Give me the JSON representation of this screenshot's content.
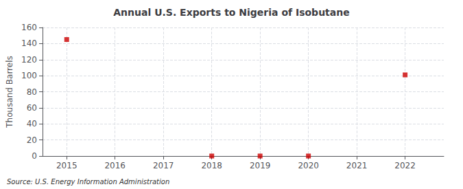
{
  "chart_data": {
    "type": "scatter",
    "title": "Annual U.S. Exports to Nigeria of Isobutane",
    "ylabel": "Thousand Barrels",
    "annotation": "Source: U.S. Energy Information Administration",
    "x": [
      2015,
      2018,
      2019,
      2020,
      2022
    ],
    "values": [
      145,
      0,
      0,
      0,
      101
    ],
    "color": "#cc0000",
    "marker": "square",
    "xlim": [
      2014.5,
      2022.8
    ],
    "xticks": [
      2015,
      2016,
      2017,
      2018,
      2019,
      2020,
      2021,
      2022
    ],
    "ylim": [
      0,
      160
    ],
    "yticks": [
      0,
      20,
      40,
      60,
      80,
      100,
      120,
      140,
      160
    ],
    "grid": true
  }
}
